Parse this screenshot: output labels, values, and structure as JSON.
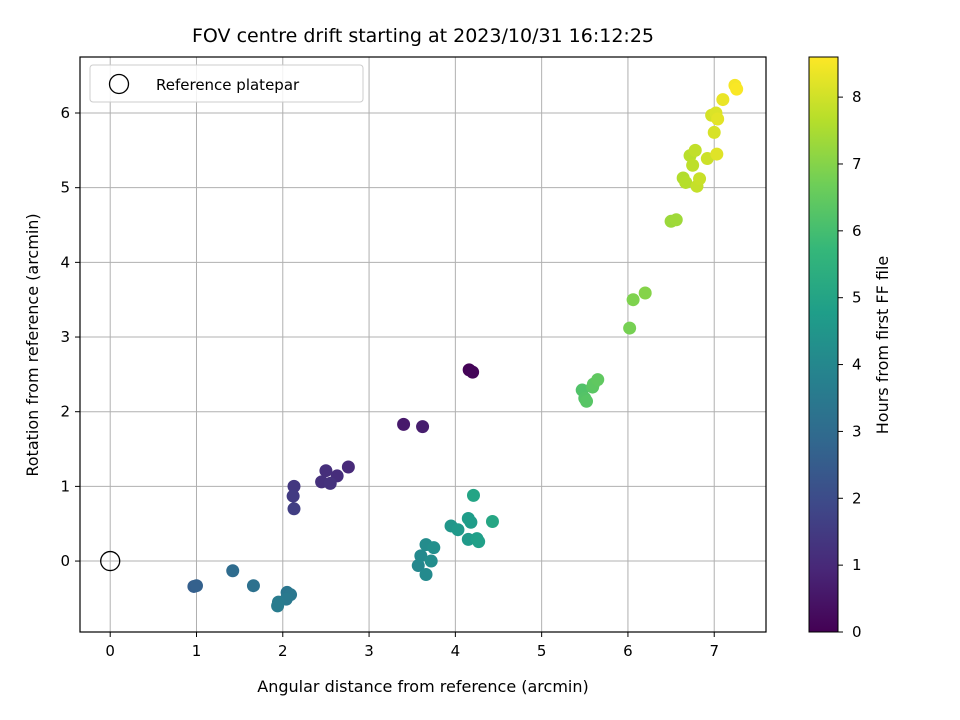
{
  "chart_data": {
    "type": "scatter",
    "title": "FOV centre drift starting at 2023/10/31 16:12:25",
    "xlabel": "Angular distance from reference (arcmin)",
    "ylabel": "Rotation from reference (arcmin)",
    "xlim": [
      -0.35,
      7.6
    ],
    "ylim": [
      -0.95,
      6.75
    ],
    "x_ticks": [
      0,
      1,
      2,
      3,
      4,
      5,
      6,
      7
    ],
    "y_ticks": [
      0,
      1,
      2,
      3,
      4,
      5,
      6
    ],
    "grid": true,
    "legend": {
      "placement": "top-left",
      "entries": [
        "Reference platepar"
      ]
    },
    "reference_point": {
      "label": "Reference platepar",
      "x": 0,
      "y": 0,
      "marker": "open-circle"
    },
    "colorbar": {
      "label": "Hours from first FF file",
      "range": [
        0,
        8.6
      ],
      "ticks": [
        0,
        1,
        2,
        3,
        4,
        5,
        6,
        7,
        8
      ],
      "colormap": "viridis",
      "colormap_stops": [
        "#440154",
        "#482878",
        "#3e4989",
        "#31688e",
        "#26828e",
        "#1f9e89",
        "#35b779",
        "#6ece58",
        "#b5de2b",
        "#fde725"
      ]
    },
    "points": [
      {
        "x": 4.16,
        "y": 2.56,
        "hours": 0.05
      },
      {
        "x": 4.2,
        "y": 2.53,
        "hours": 0.1
      },
      {
        "x": 3.4,
        "y": 1.83,
        "hours": 0.6
      },
      {
        "x": 3.62,
        "y": 1.8,
        "hours": 0.7
      },
      {
        "x": 2.76,
        "y": 1.26,
        "hours": 1.0
      },
      {
        "x": 2.63,
        "y": 1.14,
        "hours": 1.1
      },
      {
        "x": 2.5,
        "y": 1.21,
        "hours": 1.15
      },
      {
        "x": 2.45,
        "y": 1.06,
        "hours": 1.2
      },
      {
        "x": 2.55,
        "y": 1.04,
        "hours": 1.25
      },
      {
        "x": 2.13,
        "y": 1.0,
        "hours": 1.4
      },
      {
        "x": 2.12,
        "y": 0.87,
        "hours": 1.5
      },
      {
        "x": 2.13,
        "y": 0.7,
        "hours": 1.6
      },
      {
        "x": 0.97,
        "y": -0.34,
        "hours": 2.6
      },
      {
        "x": 1.0,
        "y": -0.33,
        "hours": 2.65
      },
      {
        "x": 1.42,
        "y": -0.13,
        "hours": 3.0
      },
      {
        "x": 1.66,
        "y": -0.33,
        "hours": 3.2
      },
      {
        "x": 2.05,
        "y": -0.42,
        "hours": 3.35
      },
      {
        "x": 2.09,
        "y": -0.45,
        "hours": 3.4
      },
      {
        "x": 2.04,
        "y": -0.51,
        "hours": 3.5
      },
      {
        "x": 1.95,
        "y": -0.55,
        "hours": 3.55
      },
      {
        "x": 1.94,
        "y": -0.6,
        "hours": 3.6
      },
      {
        "x": 3.57,
        "y": -0.06,
        "hours": 4.0
      },
      {
        "x": 3.6,
        "y": 0.07,
        "hours": 4.05
      },
      {
        "x": 3.66,
        "y": -0.18,
        "hours": 4.1
      },
      {
        "x": 3.66,
        "y": 0.22,
        "hours": 4.15
      },
      {
        "x": 3.72,
        "y": 0.0,
        "hours": 4.2
      },
      {
        "x": 3.75,
        "y": 0.18,
        "hours": 4.25
      },
      {
        "x": 3.95,
        "y": 0.47,
        "hours": 4.5
      },
      {
        "x": 4.03,
        "y": 0.42,
        "hours": 4.6
      },
      {
        "x": 4.15,
        "y": 0.29,
        "hours": 4.65
      },
      {
        "x": 4.18,
        "y": 0.52,
        "hours": 4.7
      },
      {
        "x": 4.15,
        "y": 0.57,
        "hours": 4.75
      },
      {
        "x": 4.25,
        "y": 0.3,
        "hours": 4.8
      },
      {
        "x": 4.27,
        "y": 0.26,
        "hours": 4.85
      },
      {
        "x": 4.21,
        "y": 0.88,
        "hours": 5.0
      },
      {
        "x": 4.43,
        "y": 0.53,
        "hours": 5.1
      },
      {
        "x": 5.47,
        "y": 2.29,
        "hours": 6.2
      },
      {
        "x": 5.5,
        "y": 2.18,
        "hours": 6.25
      },
      {
        "x": 5.52,
        "y": 2.14,
        "hours": 6.3
      },
      {
        "x": 5.59,
        "y": 2.33,
        "hours": 6.35
      },
      {
        "x": 5.6,
        "y": 2.37,
        "hours": 6.4
      },
      {
        "x": 5.65,
        "y": 2.43,
        "hours": 6.45
      },
      {
        "x": 6.02,
        "y": 3.12,
        "hours": 6.8
      },
      {
        "x": 6.06,
        "y": 3.5,
        "hours": 6.9
      },
      {
        "x": 6.2,
        "y": 3.59,
        "hours": 7.0
      },
      {
        "x": 6.5,
        "y": 4.55,
        "hours": 7.3
      },
      {
        "x": 6.56,
        "y": 4.57,
        "hours": 7.35
      },
      {
        "x": 6.64,
        "y": 5.13,
        "hours": 7.6
      },
      {
        "x": 6.67,
        "y": 5.07,
        "hours": 7.65
      },
      {
        "x": 6.72,
        "y": 5.43,
        "hours": 7.7
      },
      {
        "x": 6.75,
        "y": 5.3,
        "hours": 7.75
      },
      {
        "x": 6.78,
        "y": 5.5,
        "hours": 7.8
      },
      {
        "x": 6.8,
        "y": 5.02,
        "hours": 7.85
      },
      {
        "x": 6.83,
        "y": 5.12,
        "hours": 7.9
      },
      {
        "x": 6.92,
        "y": 5.39,
        "hours": 7.95
      },
      {
        "x": 6.97,
        "y": 5.97,
        "hours": 8.05
      },
      {
        "x": 7.0,
        "y": 5.74,
        "hours": 8.1
      },
      {
        "x": 7.02,
        "y": 6.0,
        "hours": 8.15
      },
      {
        "x": 7.03,
        "y": 5.45,
        "hours": 8.2
      },
      {
        "x": 7.04,
        "y": 5.92,
        "hours": 8.25
      },
      {
        "x": 7.1,
        "y": 6.18,
        "hours": 8.35
      },
      {
        "x": 7.24,
        "y": 6.37,
        "hours": 8.5
      },
      {
        "x": 7.26,
        "y": 6.32,
        "hours": 8.55
      }
    ]
  }
}
